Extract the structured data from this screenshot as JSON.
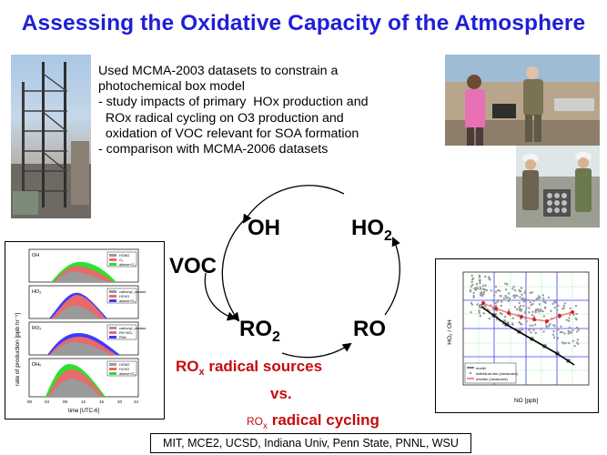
{
  "title": "Assessing the Oxidative Capacity of the Atmosphere",
  "bullets": [
    "Used MCMA-2003 datasets to constrain a",
    "photochemical box model",
    "- study impacts of primary  HOx production and",
    "  ROx radical cycling on O3 production and",
    "  oxidation of VOC relevant for SOA formation",
    "- comparison with MCMA-2006 datasets"
  ],
  "cycle": {
    "oh": "OH",
    "ho2_base": "HO",
    "ho2_sub": "2",
    "ro2_base": "RO",
    "ro2_sub": "2",
    "ro": "RO",
    "voc": "VOC"
  },
  "sources": {
    "base": "RO",
    "sub": "x",
    "rest": " radical sources"
  },
  "vs": "vs.",
  "cycling": {
    "base": "RO",
    "sub": "x",
    "rest": " radical cycling"
  },
  "credits": "MIT, MCE2, UCSD, Indiana Univ, Penn State, PNNL, WSU",
  "colors": {
    "title": "#1f1fd6",
    "red_text": "#c40c0c",
    "chart_red": "#e86a6a",
    "chart_green": "#2ee02e",
    "chart_blue": "#3b3bff",
    "chart_grey": "#9a9a9a"
  },
  "left_chart": {
    "ylabel": "rate of production [ppb hr⁻¹]",
    "xlabel": "time [UTC-6]",
    "xticks": [
      "00",
      "04",
      "08",
      "12",
      "16",
      "20",
      "24"
    ],
    "panels": [
      {
        "label": "OH",
        "legend": [
          "HONO",
          "O₃",
          "alkene+O₃"
        ]
      },
      {
        "label": "HO₂",
        "legend": [
          "carbonyl_unclass",
          "HCHO",
          "alkene+O₃"
        ]
      },
      {
        "label": "RO₂",
        "legend": [
          "carbonyl_unclass",
          "RH+NO₃",
          "PAN"
        ]
      },
      {
        "label": "OHₓ",
        "legend": [
          "HONO",
          "HCHO",
          "alkene+O₃"
        ]
      }
    ]
  },
  "right_chart": {
    "ylabel": "HO₂ / OH",
    "xlabel": "NO [ppb]",
    "legend": [
      "model",
      "individual obs (measured)",
      "median (measured)"
    ]
  }
}
